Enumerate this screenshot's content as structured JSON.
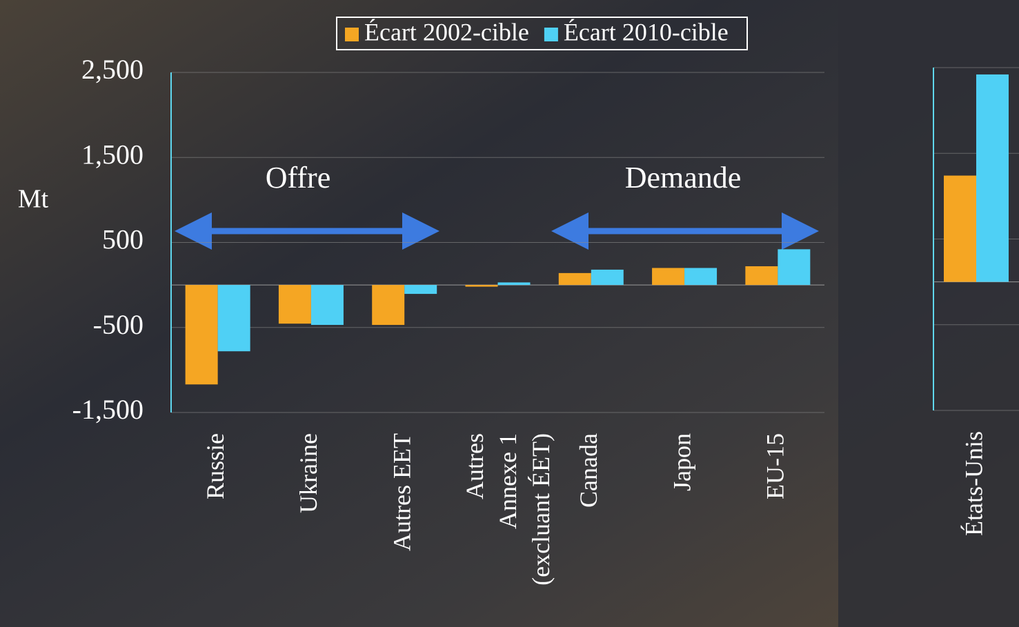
{
  "chart_data": [
    {
      "type": "bar",
      "y_label": "Mt",
      "annotations": [
        "Offre",
        "Demande"
      ],
      "categories": [
        "Russie",
        "Ukraine",
        "Autres EET",
        [
          "Autres",
          "Annexe 1",
          "(excluant ÉET)"
        ],
        "Canada",
        "Japon",
        "EU-15"
      ],
      "series": [
        {
          "name": "Écart 2002-cible",
          "color": "#f5a623",
          "values": [
            -1170,
            -455,
            -470,
            -20,
            140,
            200,
            220
          ]
        },
        {
          "name": "Écart 2010-cible",
          "color": "#4fd0f5",
          "values": [
            -780,
            -470,
            -105,
            30,
            180,
            200,
            420
          ]
        }
      ],
      "ylim": [
        -1500,
        2500
      ],
      "yticks": [
        {
          "value": -1500,
          "label": "-1,500"
        },
        -500,
        500,
        {
          "value": 1500,
          "label": "1,500"
        },
        {
          "value": 2500,
          "label": "2,500"
        }
      ],
      "grid": true
    },
    {
      "type": "bar",
      "categories": [
        "États-Unis"
      ],
      "series": [
        {
          "color": "#f5a623",
          "values": [
            1240
          ]
        },
        {
          "color": "#4fd0f5",
          "values": [
            2420
          ]
        }
      ],
      "ylim": [
        -1500,
        2500
      ],
      "yticks": [
        -1500,
        -500,
        500,
        1500,
        2500
      ],
      "grid": true
    }
  ]
}
